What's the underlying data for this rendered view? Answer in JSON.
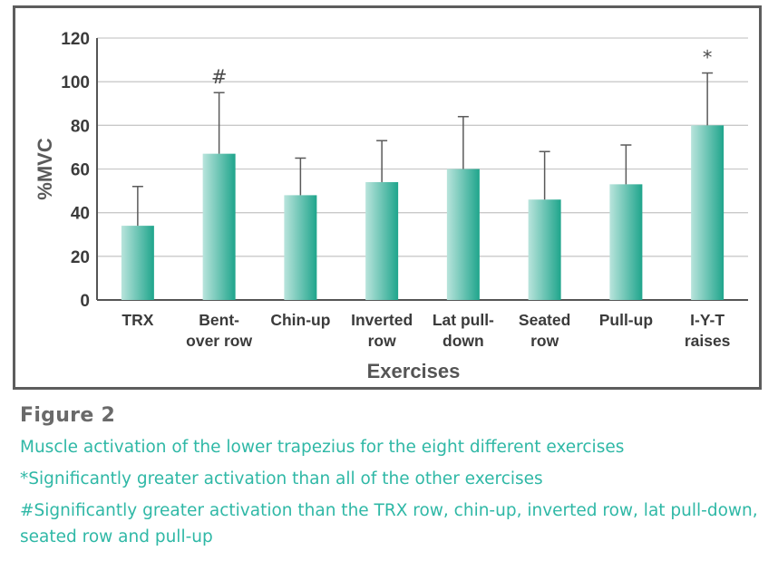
{
  "colors": {
    "accent": "#2fb39a",
    "bar_light": "#b9e4dc",
    "bar_dark": "#1fa58c",
    "grid": "#c9c9c9",
    "axis": "#555555",
    "frame": "#5d5d5d",
    "caption_text": "#2fb8a6",
    "figure_label": "#6a6a6a"
  },
  "chart_data": {
    "type": "bar",
    "title": "",
    "xlabel": "Exercises",
    "ylabel": "%MVC",
    "ylim": [
      0,
      120
    ],
    "yticks": [
      0,
      20,
      40,
      60,
      80,
      100,
      120
    ],
    "ytick_labels": [
      "0",
      "20",
      "40",
      "60",
      "80",
      "100",
      "120"
    ],
    "grid": true,
    "categories": [
      [
        "TRX"
      ],
      [
        "Bent-",
        "over row"
      ],
      [
        "Chin-up"
      ],
      [
        "Inverted",
        "row"
      ],
      [
        "Lat pull-",
        "down"
      ],
      [
        "Seated",
        "row"
      ],
      [
        "Pull-up"
      ],
      [
        "I-Y-T",
        "raises"
      ]
    ],
    "values": [
      34,
      67,
      48,
      54,
      60,
      46,
      53,
      80
    ],
    "error_upper": [
      52,
      95,
      65,
      73,
      84,
      68,
      71,
      104
    ],
    "annotations": [
      "",
      "#",
      "",
      "",
      "",
      "",
      "",
      "*"
    ]
  },
  "caption": {
    "figure_label": "Figure 2",
    "description": "Muscle activation of the lower trapezius for the eight different exercises",
    "note_star": "*Significantly greater activation than all of the other exercises",
    "note_hash": "#Significantly greater activation than the TRX row, chin-up, inverted row, lat pull-down, seated row and pull-up"
  }
}
